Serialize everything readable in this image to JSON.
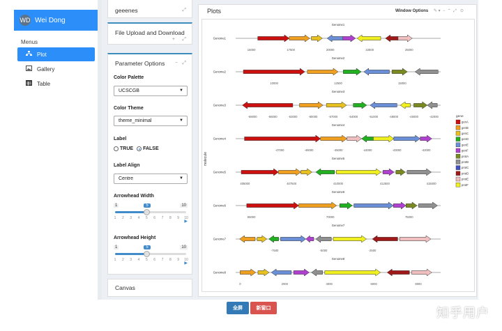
{
  "user": {
    "name": "Wei Dong",
    "avatar_initials": "WD"
  },
  "sidebar": {
    "menus_label": "Menus",
    "items": [
      {
        "label": "Plot",
        "icon": "sitemap-icon",
        "active": true
      },
      {
        "label": "Gallery",
        "icon": "image-icon",
        "active": false
      },
      {
        "label": "Table",
        "icon": "table-icon",
        "active": false
      }
    ]
  },
  "cards": {
    "genes_title": "geeenes",
    "upload_title": "File Upload and Download",
    "param_title": "Parameter Options",
    "canvas_title": "Canvas"
  },
  "params": {
    "color_palette_label": "Color Palette",
    "color_palette_value": "UCSCGB",
    "color_theme_label": "Color Theme",
    "color_theme_value": "theme_minimal",
    "label_label": "Label",
    "label_true": "TRUE",
    "label_false": "FALSE",
    "label_selected": "FALSE",
    "label_align_label": "Label Align",
    "label_align_value": "Centre",
    "arrowhead_width_label": "Arrowhead Width",
    "arrowhead_width": {
      "min": 1,
      "max": 10,
      "value": 5
    },
    "arrowhead_height_label": "Arrowhead Height",
    "arrowhead_height": {
      "min": 1,
      "max": 10,
      "value": 5
    }
  },
  "plots": {
    "title": "Plots",
    "window_options": "Window Options"
  },
  "footer": {
    "fullscreen_label": "全屏",
    "new_window_label": "新窗口"
  },
  "watermark": "知乎用户",
  "colors": {
    "accent": "#2c8ef8",
    "box_top": "#3c8dbc",
    "btn_blue": "#337ab7",
    "btn_red": "#d9534f"
  },
  "chart_data": {
    "type": "gene-arrow-map",
    "ylabel": "molecule",
    "legend_title": "gene",
    "legend": [
      {
        "name": "genA",
        "color": "#cc1010"
      },
      {
        "name": "genB",
        "color": "#f0a020"
      },
      {
        "name": "genC",
        "color": "#e8c020"
      },
      {
        "name": "genD",
        "color": "#20b020"
      },
      {
        "name": "genE",
        "color": "#6a8fd6"
      },
      {
        "name": "genF",
        "color": "#b040d0"
      },
      {
        "name": "protA",
        "color": "#7a8a20"
      },
      {
        "name": "protB",
        "color": "#909090"
      },
      {
        "name": "protC",
        "color": "#4050c0"
      },
      {
        "name": "protD",
        "color": "#a01818"
      },
      {
        "name": "protE",
        "color": "#f0c0c0"
      },
      {
        "name": "protF",
        "color": "#f0f020"
      }
    ],
    "facets": [
      {
        "title": "Genome1",
        "molecule": "Genome1",
        "xlim": [
          14000,
          27000
        ],
        "ticks": [
          "15000",
          "17500",
          "20000",
          "22500",
          "25000"
        ],
        "genes": [
          {
            "gene": "genA",
            "start": 15400,
            "end": 17400,
            "dir": 1
          },
          {
            "gene": "genB",
            "start": 17400,
            "end": 18700,
            "dir": 1
          },
          {
            "gene": "genC",
            "start": 18800,
            "end": 19500,
            "dir": 1
          },
          {
            "gene": "genE",
            "start": 19800,
            "end": 20800,
            "dir": -1
          },
          {
            "gene": "genF",
            "start": 20800,
            "end": 21600,
            "dir": 1
          },
          {
            "gene": "protF",
            "start": 21700,
            "end": 23200,
            "dir": -1
          },
          {
            "gene": "protD",
            "start": 23500,
            "end": 24300,
            "dir": -1
          },
          {
            "gene": "protE",
            "start": 24300,
            "end": 25200,
            "dir": 1
          }
        ]
      },
      {
        "title": "Genome2",
        "molecule": "Genome2",
        "xlim": [
          8500,
          16500
        ],
        "ticks": [
          "10000",
          "12500",
          "15000"
        ],
        "genes": [
          {
            "gene": "genA",
            "start": 8800,
            "end": 11200,
            "dir": 1
          },
          {
            "gene": "genB",
            "start": 11300,
            "end": 12500,
            "dir": 1
          },
          {
            "gene": "genD",
            "start": 12700,
            "end": 13400,
            "dir": 1
          },
          {
            "gene": "genE",
            "start": 13500,
            "end": 14500,
            "dir": -1
          },
          {
            "gene": "protA",
            "start": 14600,
            "end": 15200,
            "dir": 1
          },
          {
            "gene": "protB",
            "start": 15500,
            "end": 16400,
            "dir": -1
          }
        ]
      },
      {
        "title": "Genome3",
        "molecule": "Genome3",
        "xlim": [
          -71500,
          -41000
        ],
        "ticks": [
          "-69000",
          "-66000",
          "-63000",
          "-60000",
          "-57000",
          "-54000",
          "-51000",
          "-48000",
          "-45000",
          "-42000"
        ],
        "genes": [
          {
            "gene": "genA",
            "start": -70500,
            "end": -63000,
            "dir": -1
          },
          {
            "gene": "genB",
            "start": -62000,
            "end": -58500,
            "dir": 1
          },
          {
            "gene": "genC",
            "start": -58000,
            "end": -55000,
            "dir": 1
          },
          {
            "gene": "genD",
            "start": -54000,
            "end": -52000,
            "dir": 1
          },
          {
            "gene": "genE",
            "start": -51500,
            "end": -47500,
            "dir": -1
          },
          {
            "gene": "protF",
            "start": -47000,
            "end": -45500,
            "dir": -1
          },
          {
            "gene": "protA",
            "start": -45000,
            "end": -43000,
            "dir": 1
          },
          {
            "gene": "protB",
            "start": -43000,
            "end": -41500,
            "dir": -1
          }
        ]
      },
      {
        "title": "Genome4",
        "molecule": "Genome4",
        "xlim": [
          -48500,
          -41500
        ],
        "ticks": [
          "-47000",
          "-46000",
          "-45000",
          "-44000",
          "-43000",
          "-42000"
        ],
        "genes": [
          {
            "gene": "genA",
            "start": -48200,
            "end": -45600,
            "dir": 1
          },
          {
            "gene": "genB",
            "start": -45600,
            "end": -44700,
            "dir": 1
          },
          {
            "gene": "protE",
            "start": -44700,
            "end": -44200,
            "dir": 1
          },
          {
            "gene": "genD",
            "start": -44200,
            "end": -43800,
            "dir": -1
          },
          {
            "gene": "protF",
            "start": -43800,
            "end": -43100,
            "dir": 1
          },
          {
            "gene": "genE",
            "start": -43100,
            "end": -42200,
            "dir": 1
          },
          {
            "gene": "genF",
            "start": -42200,
            "end": -41800,
            "dir": 1
          }
        ]
      },
      {
        "title": "Genome5",
        "molecule": "Genome5",
        "xlim": [
          404500,
          415500
        ],
        "ticks": [
          "405000",
          "407500",
          "410000",
          "412500",
          "415000"
        ],
        "genes": [
          {
            "gene": "genA",
            "start": 404800,
            "end": 406800,
            "dir": 1
          },
          {
            "gene": "genB",
            "start": 406800,
            "end": 408000,
            "dir": 1
          },
          {
            "gene": "genC",
            "start": 408000,
            "end": 408600,
            "dir": 1
          },
          {
            "gene": "genD",
            "start": 408800,
            "end": 409800,
            "dir": -1
          },
          {
            "gene": "protF",
            "start": 409900,
            "end": 412300,
            "dir": 1
          },
          {
            "gene": "genF",
            "start": 412400,
            "end": 413000,
            "dir": 1
          },
          {
            "gene": "protA",
            "start": 413100,
            "end": 413600,
            "dir": 1
          },
          {
            "gene": "protB",
            "start": 413700,
            "end": 415000,
            "dir": 1
          }
        ]
      },
      {
        "title": "Genome6",
        "molecule": "Genome6",
        "xlim": [
          64000,
          77000
        ],
        "ticks": [
          "65000",
          "70000",
          "75000"
        ],
        "genes": [
          {
            "gene": "genA",
            "start": 64700,
            "end": 68000,
            "dir": 1
          },
          {
            "gene": "genB",
            "start": 68000,
            "end": 70400,
            "dir": 1
          },
          {
            "gene": "genD",
            "start": 70600,
            "end": 71400,
            "dir": 1
          },
          {
            "gene": "genE",
            "start": 71500,
            "end": 74000,
            "dir": 1
          },
          {
            "gene": "genF",
            "start": 74000,
            "end": 74800,
            "dir": 1
          },
          {
            "gene": "protA",
            "start": 74800,
            "end": 75500,
            "dir": 1
          },
          {
            "gene": "protB",
            "start": 75600,
            "end": 76800,
            "dir": 1
          }
        ]
      },
      {
        "title": "Genome7",
        "molecule": "Genome7",
        "xlim": [
          -9500,
          1000
        ],
        "ticks": [
          "-7500",
          "-5000",
          "-2500"
        ],
        "genes": [
          {
            "gene": "genB",
            "start": -9300,
            "end": -8500,
            "dir": -1
          },
          {
            "gene": "genC",
            "start": -8400,
            "end": -7900,
            "dir": 1
          },
          {
            "gene": "genD",
            "start": -7800,
            "end": -7300,
            "dir": -1
          },
          {
            "gene": "genE",
            "start": -7200,
            "end": -5900,
            "dir": 1
          },
          {
            "gene": "genF",
            "start": -5900,
            "end": -5500,
            "dir": -1
          },
          {
            "gene": "protB",
            "start": -5400,
            "end": -4600,
            "dir": -1
          },
          {
            "gene": "protF",
            "start": -4500,
            "end": -2800,
            "dir": 1
          },
          {
            "gene": "protD",
            "start": -2500,
            "end": -1200,
            "dir": -1
          },
          {
            "gene": "protE",
            "start": -1100,
            "end": 500,
            "dir": 1
          }
        ]
      },
      {
        "title": "Genome8",
        "molecule": "Genome8",
        "xlim": [
          -200,
          9000
        ],
        "ticks": [
          "0",
          "2000",
          "4000",
          "6000",
          "8000"
        ],
        "genes": [
          {
            "gene": "genB",
            "start": 0,
            "end": 700,
            "dir": 1
          },
          {
            "gene": "genC",
            "start": 800,
            "end": 1300,
            "dir": 1
          },
          {
            "gene": "genE",
            "start": 1400,
            "end": 2300,
            "dir": -1
          },
          {
            "gene": "genF",
            "start": 2400,
            "end": 3100,
            "dir": 1
          },
          {
            "gene": "protB",
            "start": 3200,
            "end": 3700,
            "dir": -1
          },
          {
            "gene": "protF",
            "start": 3800,
            "end": 6300,
            "dir": 1
          },
          {
            "gene": "protD",
            "start": 6600,
            "end": 7600,
            "dir": -1
          },
          {
            "gene": "protE",
            "start": 7700,
            "end": 8600,
            "dir": 1
          }
        ]
      }
    ]
  }
}
